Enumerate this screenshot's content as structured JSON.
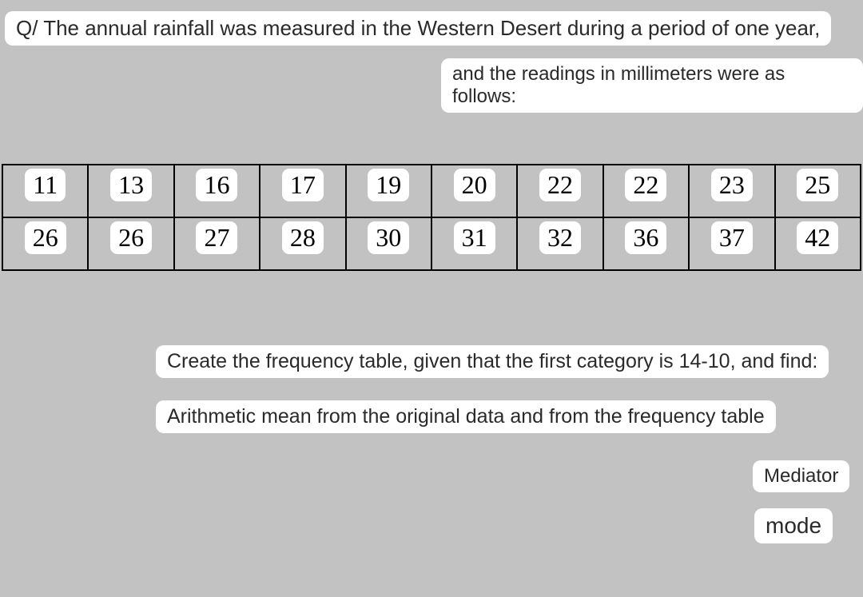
{
  "question": {
    "line1": "Q/ The annual rainfall was measured in the Western Desert during a period of one year,",
    "line2": "and the readings in millimeters were as follows:"
  },
  "dataTable": {
    "type": "table",
    "columns": 10,
    "rows": [
      [
        "11",
        "13",
        "16",
        "17",
        "19",
        "20",
        "22",
        "22",
        "23",
        "25"
      ],
      [
        "26",
        "26",
        "27",
        "28",
        "30",
        "31",
        "32",
        "36",
        "37",
        "42"
      ]
    ],
    "cell_bg": "#ffffff",
    "cell_fontsize": 32,
    "cell_fontfamily": "Times New Roman",
    "border_color": "#000000",
    "border_width": 2,
    "table_bg": "transparent"
  },
  "instructions": {
    "instr1": "Create the frequency table, given that the first category is 14-10, and find:",
    "instr2": "Arithmetic mean from the original data and from the frequency table",
    "mediator": "Mediator",
    "mode": "mode"
  },
  "colors": {
    "page_bg": "#c2c2c2",
    "bubble_bg": "#ffffff",
    "text_color": "#2a2a2a"
  }
}
